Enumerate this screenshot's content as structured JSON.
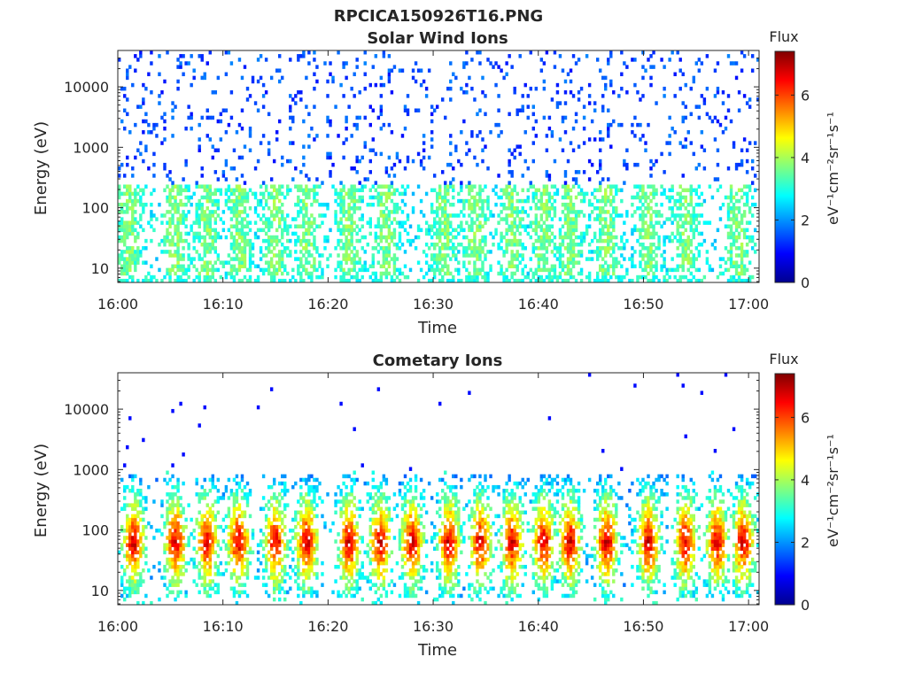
{
  "figure_title": "RPCICA150926T16.PNG",
  "colors": {
    "axis": "#262626",
    "colormap": [
      "#00008f",
      "#0000ff",
      "#00ffff",
      "#ffff00",
      "#ff0000",
      "#800000"
    ]
  },
  "chart_data": [
    {
      "type": "heatmap",
      "title": "Solar Wind Ions",
      "xlabel": "Time",
      "ylabel": "Energy (eV)",
      "x_ticks": [
        "16:00",
        "16:10",
        "16:20",
        "16:30",
        "16:40",
        "16:50",
        "17:00"
      ],
      "x_range_minutes": [
        0,
        61
      ],
      "y_scale": "log",
      "y_range": [
        5.8,
        40000
      ],
      "y_ticks": [
        {
          "value": 10,
          "label": "10"
        },
        {
          "value": 100,
          "label": "100"
        },
        {
          "value": 1000,
          "label": "1000"
        },
        {
          "value": 10000,
          "label": "10000"
        }
      ],
      "colorbar": {
        "title": "Flux",
        "label": "eV⁻¹cm⁻²sr⁻¹s⁻¹",
        "range": [
          0,
          7.4
        ],
        "ticks": [
          "0",
          "2",
          "4",
          "6"
        ]
      },
      "description_of_pattern": "sparse blue counts 300-20000 eV, denser cyan-green 10-300 eV",
      "bursts_minutes": [
        1.0,
        5.5,
        8.5,
        11.5,
        15.0,
        18.0,
        22.0,
        25.5,
        31.0,
        34.0,
        37.5,
        40.5,
        43.0,
        46.5,
        50.5,
        54.0,
        59.0
      ],
      "core_energy_ev": [
        30,
        200
      ],
      "peak_flux": 4.2
    },
    {
      "type": "heatmap",
      "title": "Cometary Ions",
      "xlabel": "Time",
      "ylabel": "Energy (eV)",
      "x_ticks": [
        "16:00",
        "16:10",
        "16:20",
        "16:30",
        "16:40",
        "16:50",
        "17:00"
      ],
      "x_range_minutes": [
        0,
        61
      ],
      "y_scale": "log",
      "y_range": [
        5.8,
        40000
      ],
      "y_ticks": [
        {
          "value": 10,
          "label": "10"
        },
        {
          "value": 100,
          "label": "100"
        },
        {
          "value": 1000,
          "label": "1000"
        },
        {
          "value": 10000,
          "label": "10000"
        }
      ],
      "colorbar": {
        "title": "Flux",
        "label": "eV⁻¹cm⁻²sr⁻¹s⁻¹",
        "range": [
          0,
          7.4
        ],
        "ticks": [
          "0",
          "2",
          "4",
          "6"
        ]
      },
      "description_of_pattern": "periodic bursts peaking 40-100 eV, yellow-red cores",
      "bursts_minutes": [
        1.5,
        5.5,
        8.5,
        11.5,
        15.0,
        18.0,
        22.0,
        25.0,
        28.0,
        31.5,
        34.5,
        37.5,
        40.5,
        43.0,
        46.5,
        50.5,
        54.0,
        57.0,
        59.5
      ],
      "core_energy_ev": [
        40,
        100
      ],
      "peak_flux": 6.8
    }
  ]
}
